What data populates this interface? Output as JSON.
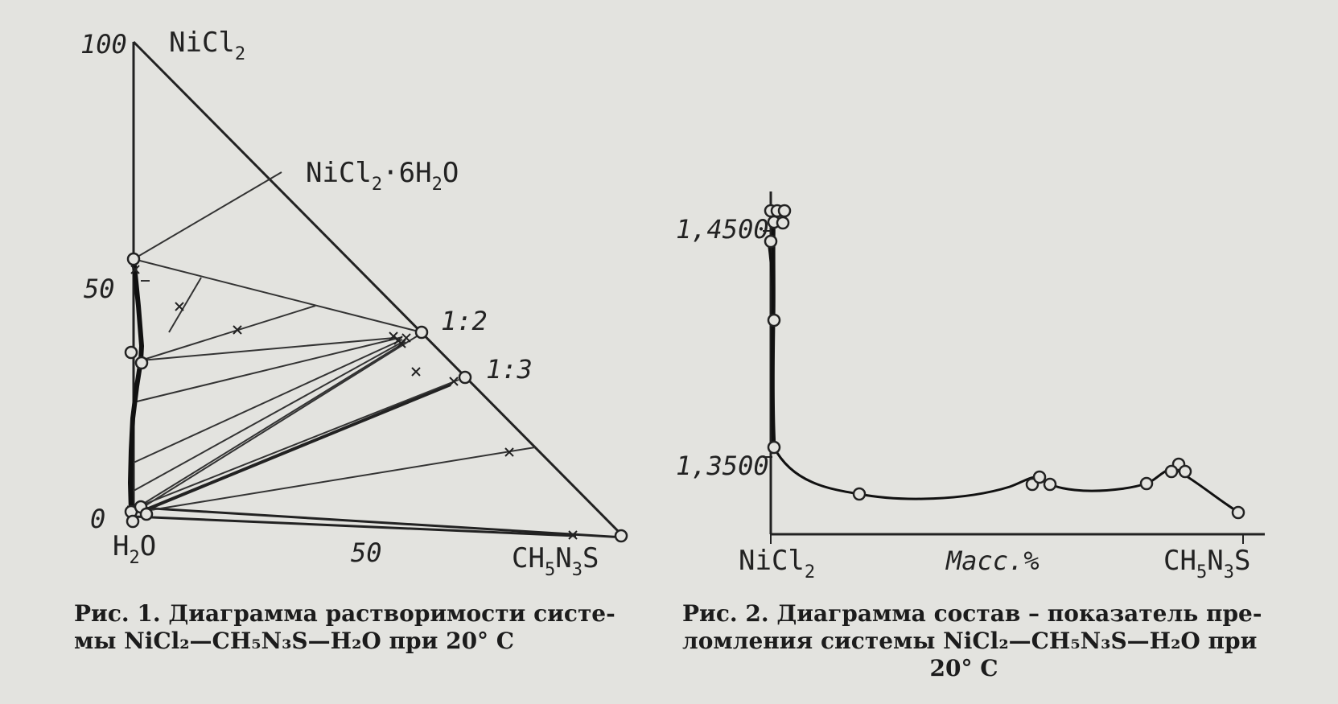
{
  "figure1": {
    "axis_labels": {
      "y_top": "100",
      "y_mid": "50",
      "y_zero": "0",
      "x_mid": "50"
    },
    "vertices": {
      "top": {
        "main": "NiCl",
        "sub": "2"
      },
      "bottom_left": {
        "main": "H",
        "sub": "2",
        "tail": "O"
      },
      "bottom_right": {
        "p1": "CH",
        "s1": "5",
        "p2": "N",
        "s2": "3",
        "p3": "S"
      }
    },
    "phase_labels": {
      "hexahydrate": {
        "p1": "NiCl",
        "s1": "2",
        "p2": "·6H",
        "s2": "2",
        "p3": "O"
      },
      "ratio_1_2": "1:2",
      "ratio_1_3": "1:3"
    },
    "caption_line1": "Рис. 1. Диаграмма растворимости систе-",
    "caption_line2": "мы NiCl₂—CH₅N₃S—H₂O при 20° С"
  },
  "figure2": {
    "y_ticks": [
      "1,4500",
      "1,3500"
    ],
    "x_left": {
      "main": "NiCl",
      "sub": "2"
    },
    "x_mid": "Масс.%",
    "x_right": {
      "p1": "CH",
      "s1": "5",
      "p2": "N",
      "s2": "3",
      "p3": "S"
    },
    "caption_line1": "Рис. 2. Диаграмма состав – показатель пре-",
    "caption_line2": "ломления системы NiCl₂—CH₅N₃S—H₂O при",
    "caption_line3": "20° С"
  }
}
